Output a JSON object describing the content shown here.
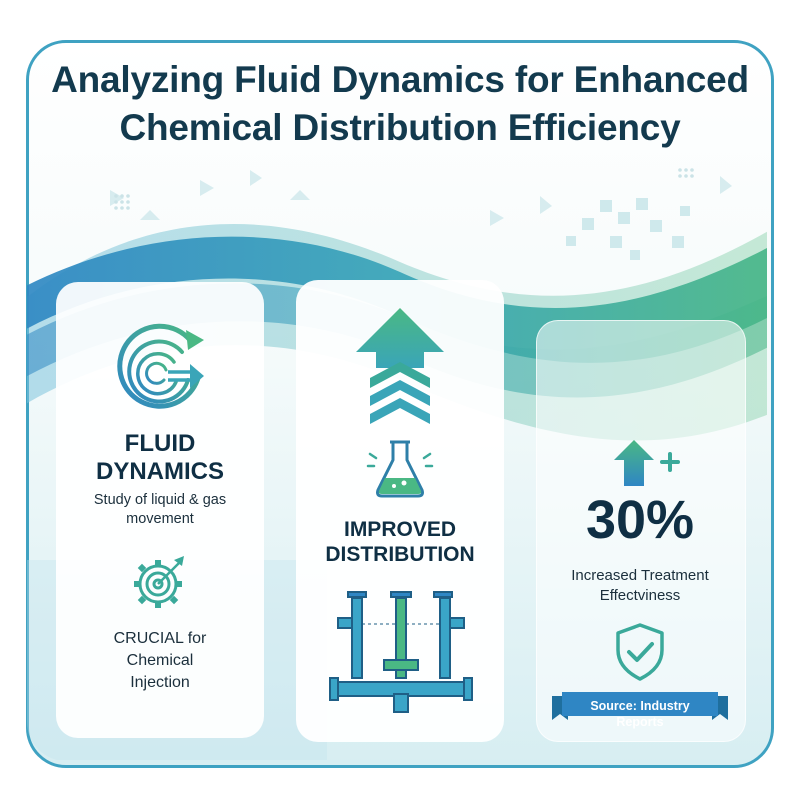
{
  "title": {
    "line1": "Analyzing Fluid Dynamics for Enhanced",
    "line2": "Chemical Distribution Efficiency"
  },
  "card1": {
    "heading_line1": "FLUID",
    "heading_line2": "DYNAMICS",
    "description": "Study of liquid & gas movement",
    "crucial_line1": "CRUCIAL for",
    "crucial_line2": "Chemical",
    "crucial_line3": "Injection",
    "icons": [
      "swirl-arrow-icon",
      "gear-target-icon"
    ]
  },
  "card2": {
    "heading_line1": "IMPROVED",
    "heading_line2": "DISTRIBUTION",
    "icons": [
      "up-chevron-arrow-icon",
      "flask-icon",
      "pipe-manifold-icon"
    ]
  },
  "card3": {
    "stat_value": "30%",
    "stat_label_line1": "Increased Treatment",
    "stat_label_line2": "Effectviness",
    "source": "Source: Industry Reports",
    "icons": [
      "up-arrow-plus-icon",
      "shield-check-icon"
    ]
  },
  "colors": {
    "primary_blue": "#2f8fc4",
    "teal": "#3aa99a",
    "green": "#4dbb83",
    "dark_navy": "#133a4e"
  }
}
